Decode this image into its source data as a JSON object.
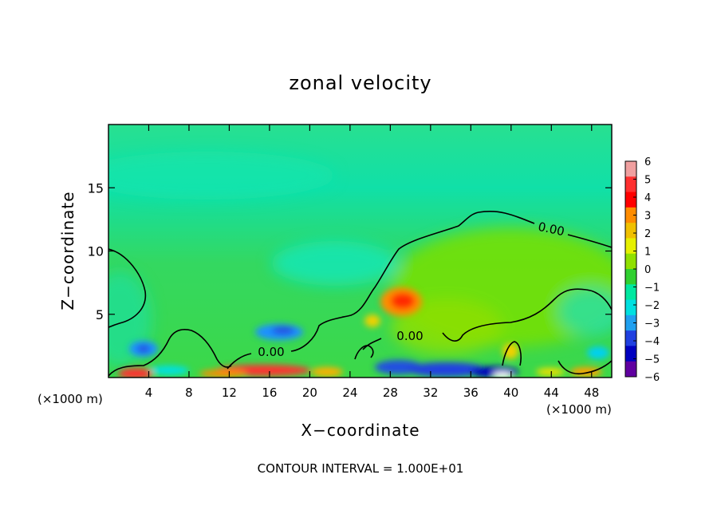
{
  "chart_data": {
    "type": "heatmap",
    "title": "zonal velocity",
    "xlabel": "X−coordinate",
    "ylabel": "Z−coordinate",
    "x_unit_left": "(×1000 m)",
    "x_unit_right": "(×1000 m)",
    "footer": "CONTOUR INTERVAL = 1.000E+01",
    "xlim": [
      0,
      50
    ],
    "ylim": [
      0,
      20
    ],
    "x_ticks": [
      4,
      8,
      12,
      16,
      20,
      24,
      28,
      32,
      36,
      40,
      44,
      48
    ],
    "y_ticks": [
      5,
      10,
      15
    ],
    "contour_label": "0.00",
    "contour_levels": [
      0
    ],
    "colorbar": {
      "range": [
        -6,
        6
      ],
      "ticks": [
        6,
        5,
        4,
        3,
        2,
        1,
        0,
        -1,
        -2,
        -3,
        -4,
        -5,
        -6
      ],
      "tick_labels": [
        "6",
        "5",
        "4",
        "3",
        "2",
        "1",
        "0",
        "−1",
        "−2",
        "−3",
        "−4",
        "−5",
        "−6"
      ],
      "colors": [
        "#f0a0a0",
        "#ff3030",
        "#ff0000",
        "#ff8c00",
        "#f0c000",
        "#e6f000",
        "#90e000",
        "#30d030",
        "#00e8a0",
        "#00e0e0",
        "#20a0f0",
        "#2040e0",
        "#0000c0",
        "#6000a0"
      ]
    },
    "features": [
      {
        "x": 2.5,
        "z": 1.5,
        "value": -3
      },
      {
        "x": 18,
        "z": 3.5,
        "value": -3
      },
      {
        "x": 29.5,
        "z": 6,
        "value": 4
      },
      {
        "x": 25,
        "z": 4.5,
        "value": 2
      },
      {
        "x": 38,
        "z": 8.5,
        "value": 1
      },
      {
        "x": 24,
        "z": 9,
        "value": -1.5
      },
      {
        "x": 3.5,
        "z": 0.3,
        "value": 4
      },
      {
        "x": 16,
        "z": 0.5,
        "value": 5
      },
      {
        "x": 32,
        "z": 0.4,
        "value": -4
      },
      {
        "x": 39,
        "z": 0.5,
        "value": -5
      },
      {
        "x": 47,
        "z": 0.5,
        "value": 3
      },
      {
        "x": 40,
        "z": 2,
        "value": 1.5
      }
    ]
  }
}
